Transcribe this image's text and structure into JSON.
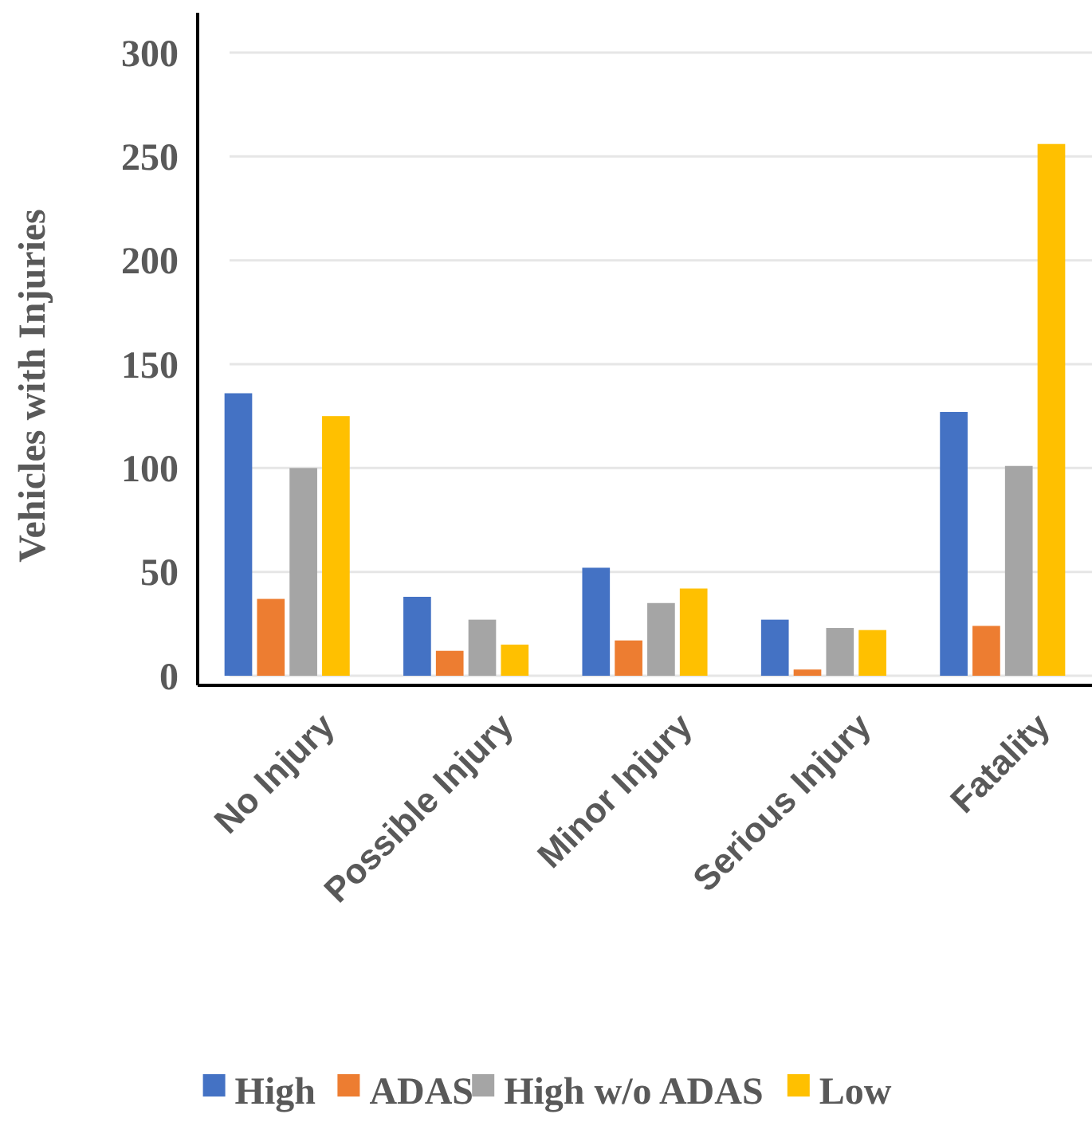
{
  "chart_data": {
    "type": "bar",
    "ylabel": "Vehicles with Injuries",
    "categories": [
      "No Injury",
      "Possible Injury",
      "Minor Injury",
      "Serious Injury",
      "Fatality"
    ],
    "series": [
      {
        "name": "High",
        "color": "#4472c4",
        "values": [
          136,
          38,
          52,
          27,
          127
        ]
      },
      {
        "name": "ADAS",
        "color": "#ed7d31",
        "values": [
          37,
          12,
          17,
          3,
          24
        ]
      },
      {
        "name": "High w/o ADAS",
        "color": "#a5a5a5",
        "values": [
          100,
          27,
          35,
          23,
          101
        ]
      },
      {
        "name": "Low",
        "color": "#ffc000",
        "values": [
          125,
          15,
          42,
          22,
          256
        ]
      }
    ],
    "ylim": [
      0,
      300
    ],
    "yticks": [
      0,
      50,
      100,
      150,
      200,
      250,
      300
    ],
    "grid": "y",
    "legend": "bottom"
  }
}
